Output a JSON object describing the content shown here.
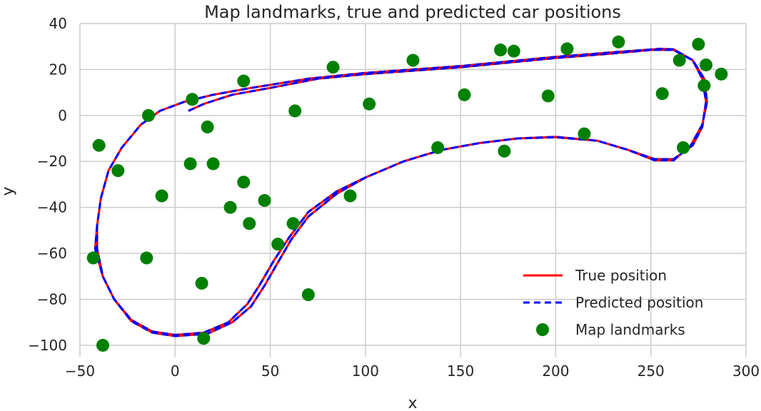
{
  "chart_data": {
    "type": "scatter",
    "title": "Map landmarks, true and predicted car positions",
    "xlabel": "x",
    "ylabel": "y",
    "xlim": [
      -50,
      300
    ],
    "ylim": [
      -105,
      40
    ],
    "xticks": [
      -50,
      0,
      50,
      100,
      150,
      200,
      250,
      300
    ],
    "yticks": [
      40,
      20,
      0,
      -20,
      -40,
      -60,
      -80,
      -100
    ],
    "xtick_labels": [
      "−50",
      "0",
      "50",
      "100",
      "150",
      "200",
      "250",
      "300"
    ],
    "ytick_labels": [
      "40",
      "20",
      "0",
      "−20",
      "−40",
      "−60",
      "−80",
      "−100"
    ],
    "grid": true,
    "legend": {
      "placement": "lower-right",
      "entries": [
        "True position",
        "Predicted position",
        "Map landmarks"
      ]
    },
    "colors": {
      "true_position": "#ff0000",
      "predicted_position": "#0000ff",
      "landmarks": "#008000",
      "grid": "#cccccc"
    },
    "series": [
      {
        "name": "True position",
        "style": "solid-line",
        "points": [
          [
            7,
            2
          ],
          [
            15,
            5
          ],
          [
            30,
            9
          ],
          [
            50,
            12
          ],
          [
            75,
            16
          ],
          [
            100,
            18
          ],
          [
            150,
            21
          ],
          [
            200,
            25
          ],
          [
            230,
            27
          ],
          [
            250,
            28.5
          ],
          [
            262,
            28.5
          ],
          [
            272,
            24
          ],
          [
            277,
            16
          ],
          [
            279,
            6
          ],
          [
            277,
            -5
          ],
          [
            272,
            -13
          ],
          [
            262,
            -19
          ],
          [
            252,
            -19
          ],
          [
            238,
            -15
          ],
          [
            222,
            -11
          ],
          [
            200,
            -9.5
          ],
          [
            180,
            -10
          ],
          [
            160,
            -12
          ],
          [
            140,
            -15
          ],
          [
            120,
            -20
          ],
          [
            100,
            -27
          ],
          [
            85,
            -33
          ],
          [
            70,
            -42
          ],
          [
            60,
            -53
          ],
          [
            52,
            -63
          ],
          [
            45,
            -73
          ],
          [
            38,
            -82
          ],
          [
            28,
            -90
          ],
          [
            15,
            -94.5
          ],
          [
            0,
            -95.5
          ],
          [
            -12,
            -94
          ],
          [
            -23,
            -89
          ],
          [
            -32,
            -80
          ],
          [
            -38,
            -70
          ],
          [
            -41,
            -58
          ],
          [
            -41,
            -48
          ],
          [
            -39,
            -36
          ],
          [
            -35,
            -24
          ],
          [
            -28,
            -14
          ],
          [
            -18,
            -4
          ],
          [
            -8,
            2
          ],
          [
            5,
            6
          ],
          [
            20,
            9
          ],
          [
            40,
            12
          ],
          [
            70,
            16
          ],
          [
            100,
            18.5
          ],
          [
            150,
            21.5
          ],
          [
            200,
            25.5
          ],
          [
            230,
            27.5
          ],
          [
            255,
            29
          ],
          [
            262,
            28.8
          ],
          [
            272,
            24
          ],
          [
            278,
            16
          ],
          [
            279.5,
            6
          ],
          [
            277,
            -4
          ],
          [
            271,
            -13
          ],
          [
            262,
            -19.5
          ],
          [
            252,
            -19.5
          ],
          [
            238,
            -15
          ],
          [
            222,
            -11
          ],
          [
            200,
            -9.3
          ],
          [
            180,
            -10
          ],
          [
            160,
            -12
          ],
          [
            140,
            -15
          ],
          [
            120,
            -20
          ],
          [
            100,
            -27
          ],
          [
            85,
            -34
          ],
          [
            70,
            -44
          ],
          [
            61,
            -54
          ],
          [
            54,
            -64
          ],
          [
            47,
            -74
          ],
          [
            40,
            -83
          ],
          [
            30,
            -90
          ],
          [
            17,
            -95
          ],
          [
            0,
            -96
          ],
          [
            -12,
            -94.5
          ],
          [
            -23,
            -89.5
          ],
          [
            -32,
            -80
          ],
          [
            -38,
            -70
          ],
          [
            -42,
            -58
          ],
          [
            -41,
            -48
          ]
        ]
      },
      {
        "name": "Predicted position",
        "style": "dashed-line",
        "points": [
          [
            7,
            2
          ],
          [
            15,
            5
          ],
          [
            30,
            9
          ],
          [
            50,
            12
          ],
          [
            75,
            16
          ],
          [
            100,
            18
          ],
          [
            150,
            21
          ],
          [
            200,
            25
          ],
          [
            230,
            27
          ],
          [
            250,
            28.5
          ],
          [
            262,
            28.5
          ],
          [
            272,
            24
          ],
          [
            277,
            16
          ],
          [
            279,
            6
          ],
          [
            277,
            -5
          ],
          [
            272,
            -13
          ],
          [
            262,
            -19
          ],
          [
            252,
            -19
          ],
          [
            238,
            -15
          ],
          [
            222,
            -11
          ],
          [
            200,
            -9.5
          ],
          [
            180,
            -10
          ],
          [
            160,
            -12
          ],
          [
            140,
            -15
          ],
          [
            120,
            -20
          ],
          [
            100,
            -27
          ],
          [
            85,
            -33
          ],
          [
            70,
            -42
          ],
          [
            60,
            -53
          ],
          [
            52,
            -63
          ],
          [
            45,
            -73
          ],
          [
            38,
            -82
          ],
          [
            28,
            -90
          ],
          [
            15,
            -94.5
          ],
          [
            0,
            -95.5
          ],
          [
            -12,
            -94
          ],
          [
            -23,
            -89
          ],
          [
            -32,
            -80
          ],
          [
            -38,
            -70
          ],
          [
            -41,
            -58
          ],
          [
            -41,
            -48
          ],
          [
            -39,
            -36
          ],
          [
            -35,
            -24
          ],
          [
            -28,
            -14
          ],
          [
            -18,
            -4
          ],
          [
            -8,
            2
          ],
          [
            5,
            6
          ],
          [
            20,
            9
          ],
          [
            40,
            12
          ],
          [
            70,
            16
          ],
          [
            100,
            18.5
          ],
          [
            150,
            21.5
          ],
          [
            200,
            25.5
          ],
          [
            230,
            27.5
          ],
          [
            255,
            29
          ],
          [
            262,
            28.8
          ],
          [
            272,
            24
          ],
          [
            278,
            16
          ],
          [
            279.5,
            6
          ],
          [
            277,
            -4
          ],
          [
            271,
            -13
          ],
          [
            262,
            -19.5
          ],
          [
            252,
            -19.5
          ],
          [
            238,
            -15
          ],
          [
            222,
            -11
          ],
          [
            200,
            -9.3
          ],
          [
            180,
            -10
          ],
          [
            160,
            -12
          ],
          [
            140,
            -15
          ],
          [
            120,
            -20
          ],
          [
            100,
            -27
          ],
          [
            85,
            -34
          ],
          [
            70,
            -44
          ],
          [
            61,
            -54
          ],
          [
            54,
            -64
          ],
          [
            47,
            -74
          ],
          [
            40,
            -83
          ],
          [
            30,
            -90
          ],
          [
            17,
            -95
          ],
          [
            0,
            -96
          ],
          [
            -12,
            -94.5
          ],
          [
            -23,
            -89.5
          ],
          [
            -32,
            -80
          ],
          [
            -38,
            -70
          ],
          [
            -42,
            -58
          ],
          [
            -41,
            -48
          ]
        ]
      },
      {
        "name": "Map landmarks",
        "style": "markers",
        "points": [
          [
            -40,
            -13
          ],
          [
            -30,
            -24
          ],
          [
            -43,
            -62
          ],
          [
            -38,
            -100
          ],
          [
            -15,
            -62
          ],
          [
            -14,
            0
          ],
          [
            -7,
            -35
          ],
          [
            9,
            7
          ],
          [
            8,
            -21
          ],
          [
            14,
            -73
          ],
          [
            15,
            -97
          ],
          [
            17,
            -5
          ],
          [
            20,
            -21
          ],
          [
            29,
            -40
          ],
          [
            36,
            15
          ],
          [
            36,
            -29
          ],
          [
            39,
            -47
          ],
          [
            47,
            -37
          ],
          [
            54,
            -56
          ],
          [
            62,
            -47
          ],
          [
            63,
            2
          ],
          [
            70,
            -78
          ],
          [
            83,
            21
          ],
          [
            92,
            -35
          ],
          [
            102,
            5
          ],
          [
            125,
            24
          ],
          [
            138,
            -14
          ],
          [
            152,
            9
          ],
          [
            171,
            28.5
          ],
          [
            173,
            -15.5
          ],
          [
            178,
            28
          ],
          [
            196,
            8.5
          ],
          [
            206,
            29
          ],
          [
            215,
            -8
          ],
          [
            233,
            32
          ],
          [
            256,
            9.5
          ],
          [
            265,
            24
          ],
          [
            267,
            -14
          ],
          [
            275,
            31
          ],
          [
            278,
            13
          ],
          [
            279,
            22
          ],
          [
            287,
            18
          ]
        ]
      }
    ]
  }
}
